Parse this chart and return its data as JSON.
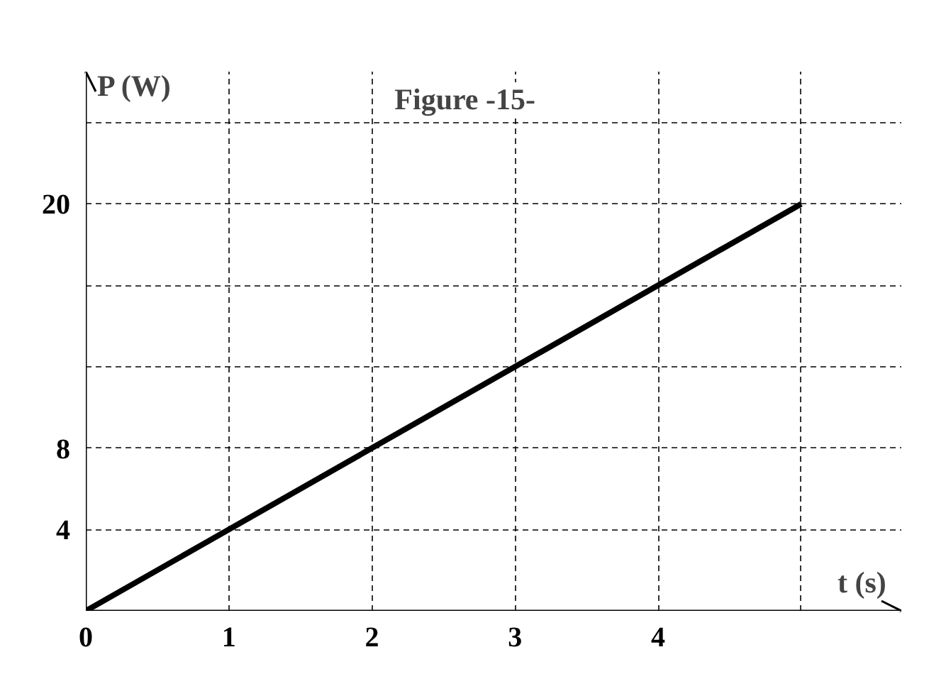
{
  "chart_data": {
    "type": "line",
    "title": "Figure -15-",
    "xlabel": "t (s)",
    "ylabel": "P (W)",
    "x": [
      0,
      5
    ],
    "series": [
      {
        "color": "#000000",
        "values": [
          0,
          20
        ]
      }
    ],
    "xlim": [
      0,
      5.7
    ],
    "ylim": [
      0,
      26.5
    ],
    "xticks": [
      0,
      1,
      2,
      3,
      4,
      {
        "value": 5,
        "label": null
      }
    ],
    "yticks": [
      {
        "value": 4,
        "label": "4"
      },
      {
        "value": 8,
        "label": "8"
      },
      {
        "value": 12,
        "label": null
      },
      {
        "value": 16,
        "label": null
      },
      {
        "value": 20,
        "label": "20"
      },
      {
        "value": 24,
        "label": null
      }
    ],
    "grid": true,
    "line_style": "solid",
    "marker": "none"
  }
}
